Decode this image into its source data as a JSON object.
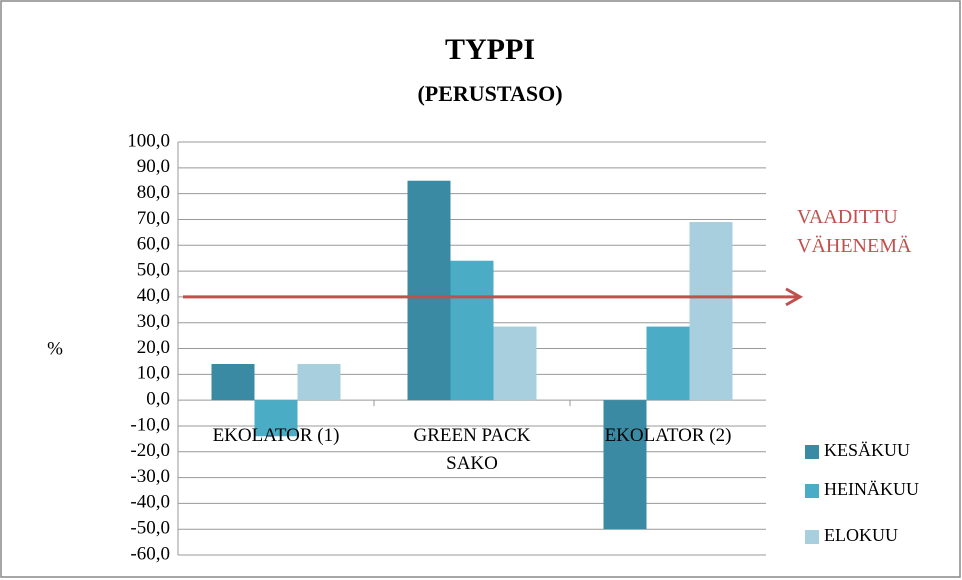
{
  "chart_data": {
    "type": "bar",
    "title": "TYPPI",
    "subtitle": "(PERUSTASO)",
    "y_label": "%",
    "categories": [
      "EKOLATOR (1)",
      "GREEN PACK SAKO",
      "EKOLATOR (2)"
    ],
    "series": [
      {
        "name": "KESÄKUU",
        "color": "#3a8aa3",
        "values": [
          14,
          85,
          -50
        ]
      },
      {
        "name": "HEINÄKUU",
        "color": "#4bacc6",
        "values": [
          -14,
          54,
          28.5
        ]
      },
      {
        "name": "ELOKUU",
        "color": "#a8cfdd",
        "values": [
          14,
          28.5,
          69
        ]
      }
    ],
    "ylim": [
      -60,
      100
    ],
    "yticks": [
      {
        "value": -60,
        "label": "-60,0"
      },
      {
        "value": -50,
        "label": "-50,0"
      },
      {
        "value": -40,
        "label": "-40,0"
      },
      {
        "value": -30,
        "label": "-30,0"
      },
      {
        "value": -20,
        "label": "-20,0"
      },
      {
        "value": -10,
        "label": "-10,0"
      },
      {
        "value": 0,
        "label": "0,0"
      },
      {
        "value": 10,
        "label": "10,0"
      },
      {
        "value": 20,
        "label": "20,0"
      },
      {
        "value": 30,
        "label": "30,0"
      },
      {
        "value": 40,
        "label": "40,0"
      },
      {
        "value": 50,
        "label": "50,0"
      },
      {
        "value": 60,
        "label": "60,0"
      },
      {
        "value": 70,
        "label": "70,0"
      },
      {
        "value": 80,
        "label": "80,0"
      },
      {
        "value": 90,
        "label": "90,0"
      },
      {
        "value": 100,
        "label": "100,0"
      }
    ],
    "grid": true,
    "reference_line": {
      "value": 40,
      "label": "VAADITTU VÄHENEMÄ",
      "color": "#c0504d"
    }
  }
}
